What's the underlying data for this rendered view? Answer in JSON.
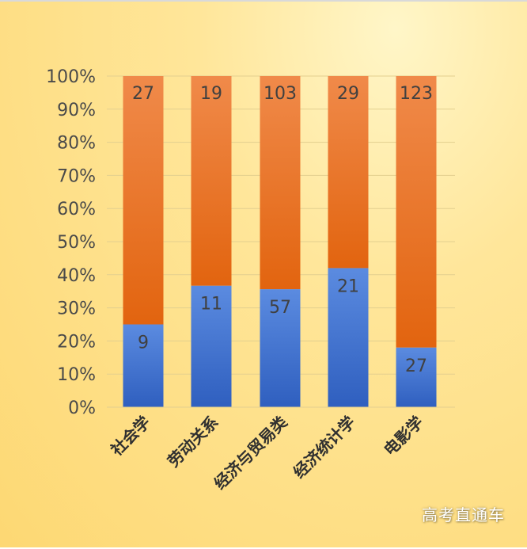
{
  "watermark": "高考直通车",
  "colors": {
    "blue_top": "#5b8be0",
    "blue_bottom": "#2f5fbf",
    "orange_top": "#f08a4a",
    "orange_bottom": "#e2640f",
    "grid": "#e3cf8f"
  },
  "chart_data": {
    "type": "bar",
    "stacked": "percent",
    "title": "",
    "xlabel": "",
    "ylabel": "",
    "ylim": [
      0,
      100
    ],
    "y_ticks": [
      "0%",
      "10%",
      "20%",
      "30%",
      "40%",
      "50%",
      "60%",
      "70%",
      "80%",
      "90%",
      "100%"
    ],
    "categories": [
      "社会学",
      "劳动关系",
      "经济与贸易类",
      "经济统计学",
      "电影学"
    ],
    "series": [
      {
        "color": "blue",
        "values": [
          9,
          11,
          57,
          21,
          27
        ]
      },
      {
        "color": "orange",
        "values": [
          27,
          19,
          103,
          29,
          123
        ]
      }
    ],
    "grid": true,
    "legend": "none"
  }
}
